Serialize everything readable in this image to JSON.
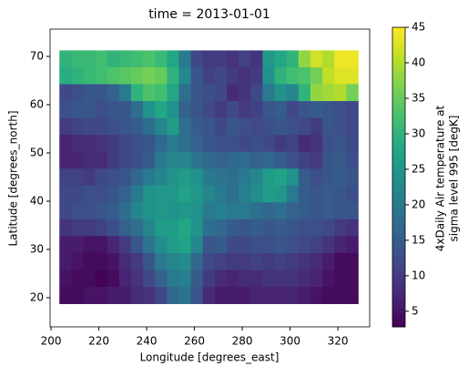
{
  "chart_data": {
    "type": "heatmap",
    "title": "time = 2013-01-01",
    "x_label": "Longitude [degrees_east]",
    "y_label": "Latitude [degrees_north]",
    "colorbar_label": [
      "4xDaily Air temperature at",
      "sigma level 995 [degK]"
    ],
    "colormap": "viridis",
    "x": [
      206,
      211,
      216,
      221,
      226,
      231,
      236,
      241,
      246,
      251,
      256,
      261,
      266,
      271,
      276,
      281,
      286,
      291,
      296,
      301,
      306,
      311,
      316,
      321,
      326
    ],
    "y": [
      69.5,
      66,
      62.5,
      59,
      55.5,
      52,
      48.5,
      45,
      41.5,
      38,
      34.5,
      31,
      27.5,
      24,
      20.5
    ],
    "values": [
      [
        30,
        31,
        31,
        32,
        30,
        31,
        32,
        33,
        31,
        28,
        20,
        12,
        10,
        10,
        9,
        11,
        9,
        25,
        28,
        30,
        38,
        42,
        40,
        44,
        44
      ],
      [
        29,
        30,
        31,
        32,
        33,
        34,
        35,
        36,
        35,
        30,
        22,
        14,
        11,
        12,
        10,
        9,
        10,
        24,
        30,
        32,
        33,
        36,
        41,
        43,
        43
      ],
      [
        12,
        13,
        14,
        14,
        16,
        20,
        30,
        33,
        32,
        28,
        18,
        14,
        13,
        12,
        8,
        9,
        12,
        20,
        24,
        22,
        30,
        38,
        39,
        40,
        36
      ],
      [
        13,
        14,
        14,
        13,
        14,
        14,
        18,
        24,
        28,
        24,
        16,
        14,
        12,
        10,
        12,
        10,
        11,
        14,
        15,
        12,
        14,
        15,
        14,
        13,
        12
      ],
      [
        10,
        11,
        12,
        12,
        13,
        14,
        15,
        18,
        22,
        26,
        18,
        15,
        14,
        12,
        14,
        13,
        12,
        13,
        14,
        13,
        12,
        10,
        14,
        13,
        12
      ],
      [
        7,
        8,
        8,
        9,
        10,
        12,
        13,
        14,
        17,
        20,
        18,
        16,
        14,
        13,
        13,
        12,
        13,
        12,
        10,
        11,
        8,
        9,
        13,
        14,
        12
      ],
      [
        7,
        7,
        8,
        8,
        10,
        12,
        13,
        15,
        20,
        22,
        22,
        19,
        17,
        16,
        17,
        18,
        16,
        17,
        15,
        13,
        11,
        10,
        14,
        15,
        13
      ],
      [
        11,
        11,
        10,
        12,
        13,
        14,
        17,
        20,
        22,
        24,
        26,
        24,
        20,
        19,
        18,
        20,
        22,
        26,
        27,
        24,
        15,
        13,
        14,
        15,
        14
      ],
      [
        12,
        12,
        13,
        13,
        14,
        16,
        20,
        24,
        25,
        25,
        27,
        25,
        22,
        20,
        18,
        21,
        23,
        26,
        25,
        20,
        15,
        14,
        15,
        14,
        13
      ],
      [
        12,
        13,
        13,
        14,
        15,
        18,
        22,
        24,
        25,
        24,
        25,
        24,
        20,
        21,
        20,
        20,
        18,
        17,
        18,
        16,
        15,
        14,
        15,
        14,
        14
      ],
      [
        9,
        10,
        10,
        11,
        13,
        16,
        18,
        22,
        26,
        26,
        28,
        24,
        18,
        17,
        15,
        14,
        15,
        14,
        15,
        14,
        13,
        13,
        12,
        10,
        9
      ],
      [
        6,
        6,
        5,
        5,
        7,
        10,
        14,
        19,
        23,
        26,
        27,
        22,
        14,
        15,
        12,
        12,
        13,
        13,
        14,
        13,
        12,
        11,
        9,
        7,
        6
      ],
      [
        6,
        5,
        4,
        4,
        5,
        8,
        10,
        14,
        20,
        22,
        23,
        17,
        12,
        11,
        10,
        10,
        11,
        10,
        11,
        10,
        9,
        8,
        6,
        4,
        4
      ],
      [
        5,
        4,
        4,
        3,
        4,
        7,
        9,
        12,
        16,
        20,
        21,
        15,
        10,
        8,
        7,
        8,
        8,
        9,
        9,
        9,
        8,
        7,
        5,
        4,
        4
      ],
      [
        4,
        4,
        5,
        5,
        6,
        6,
        8,
        9,
        12,
        17,
        19,
        14,
        8,
        6,
        6,
        6,
        7,
        7,
        7,
        7,
        6,
        5,
        4,
        4,
        4
      ]
    ],
    "xlim": [
      199.6,
      333.3
    ],
    "ylim": [
      13.96,
      75.66
    ],
    "xticks": [
      200,
      220,
      240,
      260,
      280,
      300,
      320
    ],
    "yticks": [
      20,
      30,
      40,
      50,
      60,
      70
    ],
    "clim": [
      2.8,
      45
    ],
    "cticks": [
      5,
      10,
      15,
      20,
      25,
      30,
      35,
      40,
      45
    ]
  }
}
